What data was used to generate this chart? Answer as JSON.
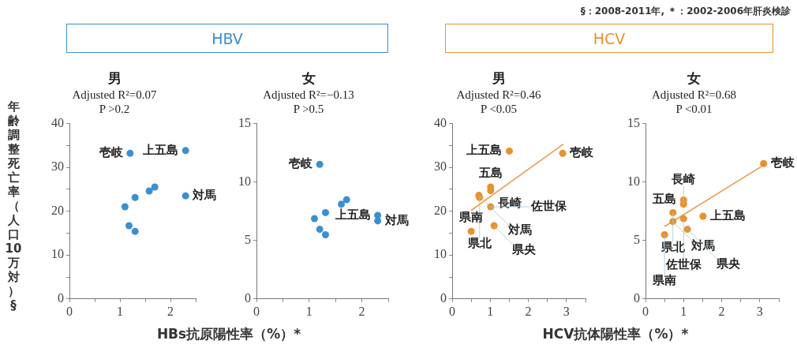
{
  "chart_data": [
    {
      "type": "scatter",
      "title": "男",
      "subtitle": "Adjusted R²=0.07\nP >0.2",
      "ylabel": "年齢調整死亡率（人口10万対）§",
      "xlabel": "HBs抗原陽性率（%）*",
      "marker": "circle",
      "series": [
        {
          "color": "#3a8fd0",
          "x": [
            1.2,
            2.3,
            2.3,
            1.1,
            1.3,
            1.58,
            1.69,
            1.18,
            1.3
          ],
          "values": [
            33.2,
            33.8,
            23.5,
            21.0,
            23.1,
            24.6,
            25.5,
            16.7,
            15.4
          ]
        }
      ],
      "xlim": [
        0,
        2.5
      ],
      "xticks": [
        0,
        {
          "value": 0.5,
          "label": null
        },
        1,
        {
          "value": 1.5,
          "label": null
        },
        2,
        {
          "value": 2.5,
          "label": null
        }
      ],
      "ylim": [
        0,
        40
      ],
      "yticks": [
        0,
        {
          "value": 5,
          "label": null
        },
        10,
        {
          "value": 15,
          "label": null
        },
        20,
        {
          "value": 25,
          "label": null
        },
        30,
        {
          "value": 35,
          "label": null
        },
        40
      ],
      "annotations": [
        "HBV",
        {
          "text": "壱岐",
          "x": 1.2,
          "y": 33.2
        },
        {
          "text": "上五島",
          "x": 2.3,
          "y": 33.8
        },
        {
          "text": "対馬",
          "x": 2.3,
          "y": 23.5
        }
      ]
    },
    {
      "type": "scatter",
      "title": "女",
      "subtitle": "Adjusted R²=−0.13\nP >0.5",
      "marker": "circle",
      "series": [
        {
          "color": "#3a8fd0",
          "x": [
            1.2,
            1.1,
            1.2,
            1.31,
            1.31,
            1.61,
            1.71,
            2.3,
            2.3
          ],
          "values": [
            11.5,
            6.86,
            5.95,
            5.48,
            7.38,
            8.1,
            8.48,
            7.14,
            6.67
          ]
        }
      ],
      "xlim": [
        0,
        2.5
      ],
      "xticks": [
        0,
        {
          "value": 0.5,
          "label": null
        },
        1,
        {
          "value": 1.5,
          "label": null
        },
        2,
        {
          "value": 2.5,
          "label": null
        }
      ],
      "ylim": [
        0,
        15
      ],
      "yticks": [
        0,
        5,
        10,
        15
      ],
      "annotations": [
        {
          "text": "壱岐",
          "x": 1.2,
          "y": 11.5
        },
        {
          "text": "上五島",
          "x": 2.3,
          "y": 7.14
        },
        {
          "text": "対馬",
          "x": 2.3,
          "y": 6.67
        }
      ]
    },
    {
      "type": "scatter",
      "title": "男",
      "subtitle": "Adjusted R²=0.46\nP <0.05",
      "xlabel": "HCV抗体陽性率（%）*",
      "marker": "circle",
      "series": [
        {
          "color": "#e8912d",
          "x": [
            1.5,
            2.9,
            1.01,
            1.01,
            0.7,
            0.72,
            1.01,
            1.1,
            0.5
          ],
          "values": [
            33.7,
            33.2,
            25.5,
            24.7,
            23.6,
            23.1,
            21.0,
            16.7,
            15.4
          ]
        },
        {
          "type": "line",
          "marker": "none",
          "color": "#eb9c4c",
          "x": [
            0.5,
            2.92
          ],
          "values": [
            20.2,
            35.3
          ]
        }
      ],
      "xlim": [
        0,
        3.5
      ],
      "xticks": [
        0,
        {
          "value": 0.5,
          "label": null
        },
        1,
        {
          "value": 1.5,
          "label": null
        },
        2,
        {
          "value": 2.5,
          "label": null
        },
        3,
        {
          "value": 3.5,
          "label": null
        }
      ],
      "ylim": [
        0,
        40
      ],
      "yticks": [
        0,
        {
          "value": 5,
          "label": null
        },
        10,
        {
          "value": 15,
          "label": null
        },
        20,
        {
          "value": 25,
          "label": null
        },
        30,
        {
          "value": 35,
          "label": null
        },
        40
      ],
      "annotations": [
        "HCV",
        {
          "text": "上五島",
          "x": 1.5,
          "y": 33.7
        },
        {
          "text": "壱岐",
          "x": 2.9,
          "y": 33.2
        },
        {
          "text": "五島",
          "x": 1.01,
          "y": 25.5
        },
        {
          "text": "長崎",
          "x": 1.01,
          "y": 24.7
        },
        {
          "text": "対馬",
          "x": 0.7,
          "y": 23.6
        },
        {
          "text": "県北",
          "x": 0.72,
          "y": 23.1
        },
        {
          "text": "佐世保",
          "x": 1.01,
          "y": 21.0
        },
        {
          "text": "県央",
          "x": 1.1,
          "y": 16.7
        },
        {
          "text": "県南",
          "x": 0.5,
          "y": 15.4
        }
      ]
    },
    {
      "type": "scatter",
      "title": "女",
      "subtitle": "Adjusted R²=0.68\nP <0.01",
      "marker": "circle",
      "series": [
        {
          "color": "#e8912d",
          "x": [
            3.1,
            1.0,
            1.0,
            0.72,
            0.72,
            1.0,
            1.51,
            1.1,
            0.5
          ],
          "values": [
            11.57,
            8.45,
            8.1,
            7.38,
            6.62,
            6.86,
            7.07,
            5.95,
            5.48
          ]
        },
        {
          "type": "line",
          "marker": "none",
          "color": "#eb9c4c",
          "x": [
            0.5,
            3.12
          ],
          "values": [
            6.19,
            11.48
          ]
        }
      ],
      "xlim": [
        0,
        3.5
      ],
      "xticks": [
        0,
        {
          "value": 0.5,
          "label": null
        },
        1,
        {
          "value": 1.5,
          "label": null
        },
        2,
        {
          "value": 2.5,
          "label": null
        },
        3,
        {
          "value": 3.5,
          "label": null
        }
      ],
      "ylim": [
        0,
        15
      ],
      "yticks": [
        0,
        5,
        10,
        15
      ],
      "annotations": [
        "§：2008-2011年, ＊：2002-2006年肝炎検診",
        {
          "text": "壱岐",
          "x": 3.1,
          "y": 11.57
        },
        {
          "text": "五島",
          "x": 1.0,
          "y": 8.45
        },
        {
          "text": "長崎",
          "x": 1.0,
          "y": 8.1
        },
        {
          "text": "県北",
          "x": 0.72,
          "y": 7.38
        },
        {
          "text": "対馬",
          "x": 0.72,
          "y": 6.62
        },
        {
          "text": "上五島",
          "x": 1.51,
          "y": 7.07
        },
        {
          "text": "佐世保",
          "x": 1.0,
          "y": 6.86
        },
        {
          "text": "県央",
          "x": 1.1,
          "y": 5.95
        },
        {
          "text": "県南",
          "x": 0.5,
          "y": 5.48
        }
      ]
    }
  ]
}
